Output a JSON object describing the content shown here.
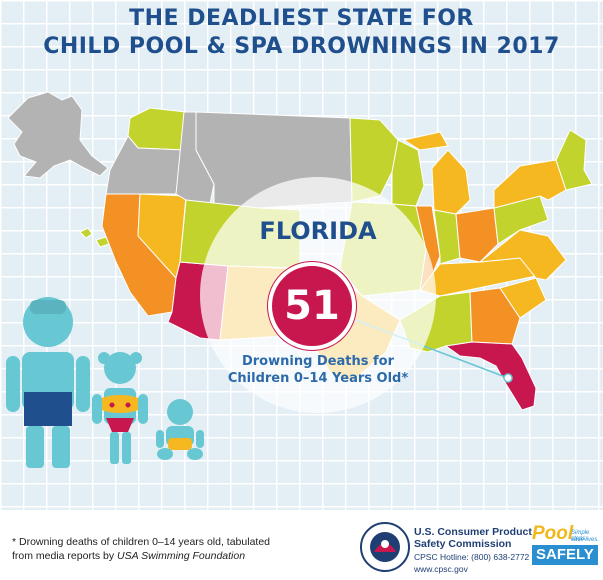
{
  "title": {
    "line1": "THE DEADLIEST STATE FOR",
    "line2": "CHILD POOL & SPA DROWNINGS IN 2017"
  },
  "highlight": {
    "state": "FLORIDA",
    "count": "51",
    "label_line1": "Drowning Deaths for",
    "label_line2": "Children 0–14 Years Old*"
  },
  "footnote": {
    "line1": "* Drowning deaths of children 0–14 years old, tabulated",
    "line2_prefix": "from media reports by ",
    "line2_source": "USA Swimming Foundation"
  },
  "cpsc": {
    "name_line1": "U.S. Consumer Product",
    "name_line2": "Safety Commission",
    "hotline": "CPSC Hotline: (800) 638-2772",
    "website": "www.cpsc.gov",
    "seal_text_top": "CONSUMER PRODUCT SAFETY COMMISSION",
    "seal_text_bottom": "UNITED STATES"
  },
  "pool_safely": {
    "word1": "Pool",
    "word2": "SAFELY",
    "tagline1": "Simple steps.",
    "tagline2": "save lives."
  },
  "colors": {
    "title_blue": "#1f4f8c",
    "florida_red": "#c8174f",
    "label_blue": "#2c6aa9",
    "tier_gray": "#b3b3b3",
    "tier_lime": "#c2d32d",
    "tier_yellow": "#f5b820",
    "tier_orange": "#f39124",
    "tier_highest": "#c8174f",
    "figure_teal": "#67c7d3"
  }
}
